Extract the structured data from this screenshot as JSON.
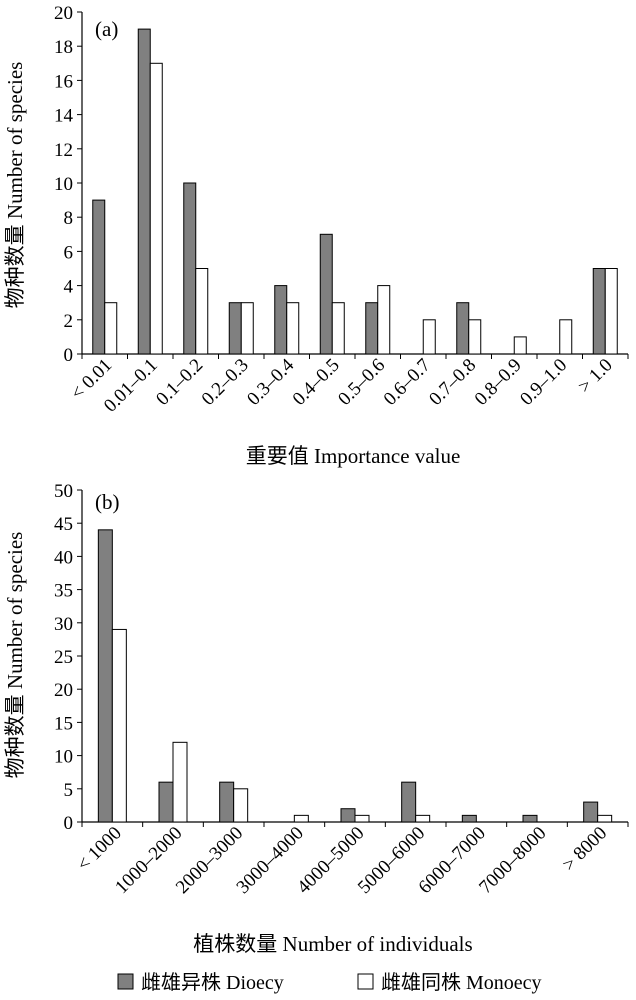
{
  "chart_data": [
    {
      "type": "bar",
      "panel_label": "(a)",
      "categories": [
        "< 0.01",
        "0.01–0.1",
        "0.1–0.2",
        "0.2–0.3",
        "0.3–0.4",
        "0.4–0.5",
        "0.5–0.6",
        "0.6–0.7",
        "0.7–0.8",
        "0.8–0.9",
        "0.9–1.0",
        "> 1.0"
      ],
      "series": [
        {
          "name": "雌雄异株 Dioecy",
          "color": "#808080",
          "values": [
            9,
            19,
            10,
            3,
            4,
            7,
            3,
            0,
            3,
            0,
            0,
            5
          ]
        },
        {
          "name": "雌雄同株 Monoecy",
          "color": "#ffffff",
          "values": [
            3,
            17,
            5,
            3,
            3,
            3,
            4,
            2,
            2,
            1,
            2,
            5
          ]
        }
      ],
      "xlabel": "重要值 Importance value",
      "ylabel": "物种数量 Number of species",
      "ylim": [
        0,
        20
      ],
      "yticks": [
        0,
        2,
        4,
        6,
        8,
        10,
        12,
        14,
        16,
        18,
        20
      ],
      "grid": false
    },
    {
      "type": "bar",
      "panel_label": "(b)",
      "categories": [
        "< 1000",
        "1000–2000",
        "2000–3000",
        "3000–4000",
        "4000–5000",
        "5000–6000",
        "6000–7000",
        "7000–8000",
        "> 8000"
      ],
      "series": [
        {
          "name": "雌雄异株 Dioecy",
          "color": "#808080",
          "values": [
            44,
            6,
            6,
            0,
            2,
            6,
            1,
            1,
            3
          ]
        },
        {
          "name": "雌雄同株 Monoecy",
          "color": "#ffffff",
          "values": [
            29,
            12,
            5,
            1,
            1,
            1,
            0,
            0,
            1
          ]
        }
      ],
      "xlabel": "植株数量 Number of  individuals",
      "ylabel": "物种数量 Number of species",
      "ylim": [
        0,
        50
      ],
      "yticks": [
        0,
        5,
        10,
        15,
        20,
        25,
        30,
        35,
        40,
        45,
        50
      ],
      "grid": false
    }
  ],
  "legend": {
    "position": "bottom",
    "items": [
      {
        "label": "雌雄异株 Dioecy",
        "color": "#808080"
      },
      {
        "label": "雌雄同株 Monoecy",
        "color": "#ffffff"
      }
    ]
  }
}
